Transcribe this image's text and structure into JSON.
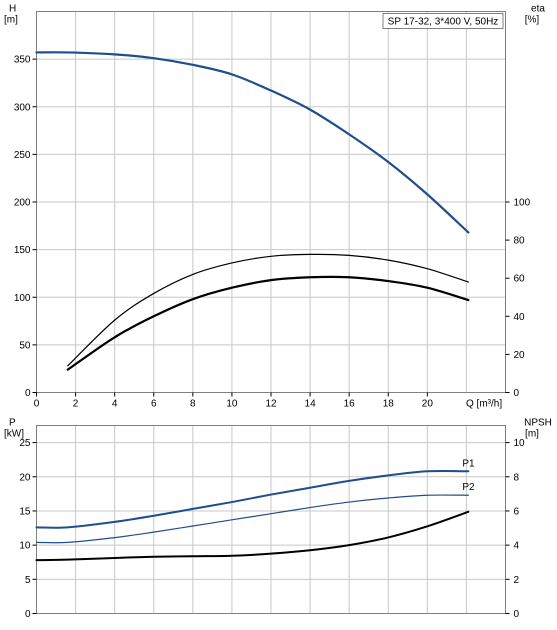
{
  "chart_data": [
    {
      "type": "line",
      "legend_box": "SP 17-32, 3*400 V, 50Hz",
      "left_axis": {
        "label_lines": [
          "H",
          "[m]"
        ],
        "ylim": [
          0,
          400
        ],
        "ticks": [
          0,
          50,
          100,
          150,
          200,
          250,
          300,
          350
        ]
      },
      "right_axis": {
        "label_lines": [
          "eta",
          "[%]"
        ],
        "ylim": [
          0,
          200
        ],
        "ticks": [
          0,
          20,
          40,
          60,
          80,
          100
        ]
      },
      "x_axis": {
        "label": "Q [m³/h]",
        "xlim": [
          0,
          24
        ],
        "ticks": [
          0,
          2,
          4,
          6,
          8,
          10,
          12,
          14,
          16,
          18,
          20
        ]
      },
      "grid": true,
      "series": [
        {
          "axis": "left",
          "color": "#1f4e8c",
          "width": 2.2,
          "x": [
            0,
            1.6,
            4,
            6,
            8,
            10,
            12,
            14,
            16,
            18,
            20,
            22.1
          ],
          "y": [
            357,
            357,
            355,
            351,
            344,
            334,
            317,
            297,
            271,
            242,
            208,
            168
          ]
        },
        {
          "axis": "right",
          "color": "#000000",
          "width": 1.2,
          "x": [
            1.6,
            4,
            6,
            8,
            10,
            12,
            14,
            16,
            18,
            20,
            22.1
          ],
          "y": [
            14,
            38,
            52,
            62,
            68,
            71.5,
            72.5,
            72,
            69.5,
            65,
            58
          ]
        },
        {
          "axis": "right",
          "color": "#000000",
          "width": 2.2,
          "x": [
            1.6,
            4,
            6,
            8,
            10,
            12,
            14,
            16,
            18,
            20,
            22.1
          ],
          "y": [
            12,
            29,
            40,
            49,
            55,
            59,
            60.5,
            60.5,
            58.5,
            55,
            48.5
          ]
        }
      ]
    },
    {
      "type": "line",
      "left_axis": {
        "label_lines": [
          "P",
          "[kW]"
        ],
        "ylim": [
          0,
          27.5
        ],
        "ticks": [
          0,
          5,
          10,
          15,
          20,
          25
        ]
      },
      "right_axis": {
        "label_lines": [
          "NPSH",
          "[m]"
        ],
        "ylim": [
          0,
          11
        ],
        "ticks": [
          0,
          2,
          4,
          6,
          8,
          10
        ]
      },
      "xlim": [
        0,
        24
      ],
      "grid": true,
      "series": [
        {
          "name": "P1",
          "axis": "left",
          "color": "#1f4e8c",
          "width": 2.0,
          "x": [
            0,
            1.6,
            4,
            6,
            8,
            10,
            12,
            14,
            16,
            18,
            20,
            22.1
          ],
          "y": [
            12.6,
            12.6,
            13.4,
            14.3,
            15.3,
            16.3,
            17.4,
            18.4,
            19.4,
            20.2,
            20.8,
            20.8
          ]
        },
        {
          "name": "P2",
          "axis": "left",
          "color": "#1f4e8c",
          "width": 1.2,
          "x": [
            0,
            1.6,
            4,
            6,
            8,
            10,
            12,
            14,
            16,
            18,
            20,
            22.1
          ],
          "y": [
            10.4,
            10.4,
            11.1,
            11.9,
            12.8,
            13.7,
            14.6,
            15.5,
            16.3,
            16.9,
            17.3,
            17.3
          ]
        },
        {
          "axis": "right",
          "color": "#000000",
          "width": 2.0,
          "x": [
            0,
            1.6,
            4,
            6,
            8,
            10,
            12,
            14,
            16,
            18,
            20,
            22.1
          ],
          "y": [
            3.12,
            3.15,
            3.25,
            3.32,
            3.35,
            3.38,
            3.5,
            3.7,
            4.0,
            4.45,
            5.1,
            5.95
          ]
        }
      ]
    }
  ]
}
